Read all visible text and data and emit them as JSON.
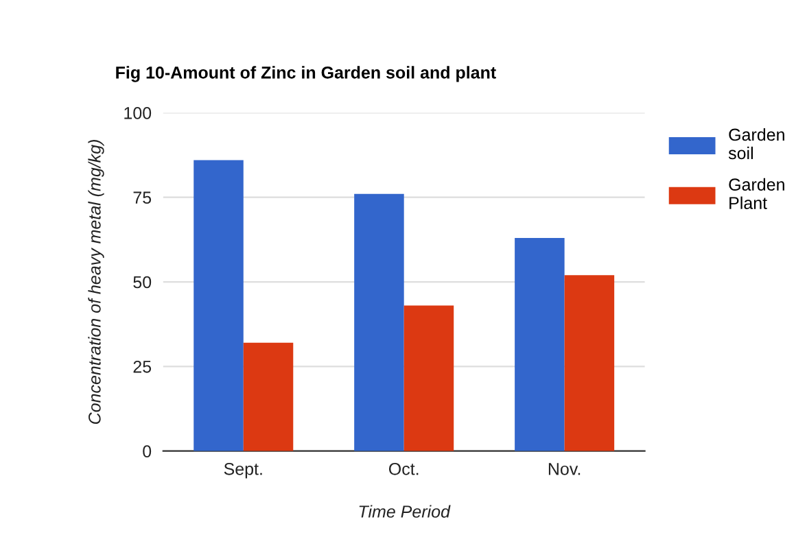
{
  "chart_data": {
    "type": "bar",
    "title": "Fig 10-Amount of Zinc in Garden soil and plant",
    "xlabel": "Time Period",
    "ylabel": "Concentration of heavy metal (mg/kg)",
    "categories": [
      "Sept.",
      "Oct.",
      "Nov."
    ],
    "series": [
      {
        "name": "Garden soil",
        "color": "#3366cc",
        "values": [
          86,
          76,
          63
        ]
      },
      {
        "name": "Garden Plant",
        "color": "#dc3912",
        "values": [
          32,
          43,
          52
        ]
      }
    ],
    "ylim": [
      0,
      100
    ],
    "yticks": [
      0,
      25,
      50,
      75,
      100
    ],
    "grid": "y",
    "legend": "top right"
  }
}
